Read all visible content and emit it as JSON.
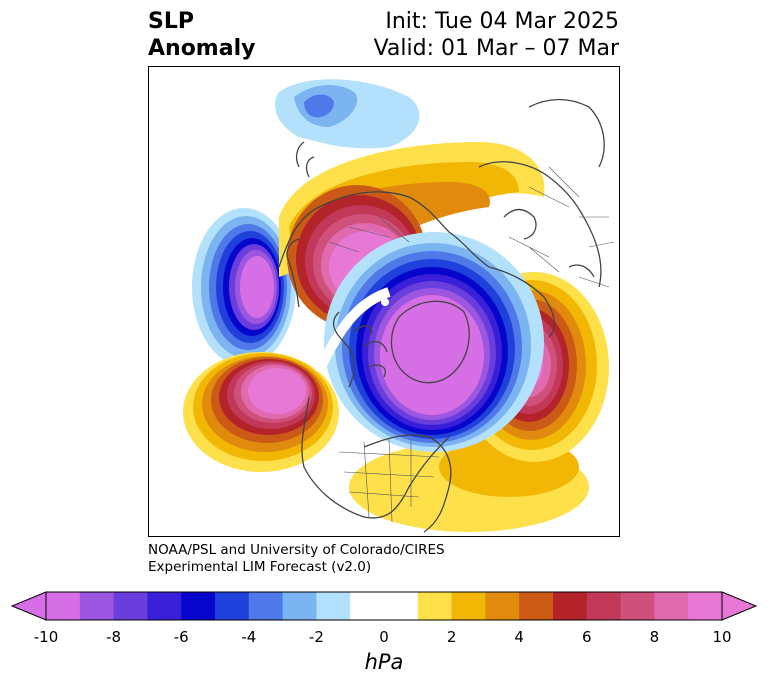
{
  "title": {
    "left_line1": "SLP",
    "left_line2": "Anomaly",
    "right_line1": "Init: Tue 04 Mar 2025",
    "right_line2": "Valid: 01 Mar – 07 Mar"
  },
  "credit": {
    "line1": "NOAA/PSL and University of Colorado/CIRES",
    "line2": "Experimental LIM Forecast (v2.0)"
  },
  "colorbar": {
    "unit": "hPa",
    "ticks": [
      "-10",
      "-8",
      "-6",
      "-4",
      "-2",
      "0",
      "2",
      "4",
      "6",
      "8",
      "10"
    ],
    "colors": [
      "#d66fe6",
      "#9d56e0",
      "#6a3ddd",
      "#3a1fd8",
      "#0505cc",
      "#2040dc",
      "#4f78e8",
      "#7cb4f2",
      "#b3e0fb",
      "#ffffff",
      "#ffffff",
      "#fde04a",
      "#f2b705",
      "#e08b0e",
      "#cc5a17",
      "#b2242a",
      "#c23858",
      "#d0507c",
      "#df6aad",
      "#e878d6"
    ],
    "extend_low_color": "#d66fe6",
    "extend_high_color": "#e878d6"
  },
  "map": {
    "projection": "north polar stereographic",
    "anomalies": [
      {
        "feature": "low",
        "region": "Gulf of Alaska / NE Pacific",
        "min_hPa": -10
      },
      {
        "feature": "low",
        "region": "Arctic / Siberia",
        "min_hPa": -10
      },
      {
        "feature": "low",
        "region": "Greenland / Canadian Arctic",
        "min_hPa": -10
      },
      {
        "feature": "high",
        "region": "Scandinavia / Europe",
        "max_hPa": 10
      },
      {
        "feature": "high",
        "region": "North Atlantic (Azores)",
        "max_hPa": 10
      },
      {
        "feature": "high",
        "region": "Central Pacific",
        "max_hPa": 10
      },
      {
        "feature": "high",
        "region": "Southeast US / Western Atlantic",
        "max_hPa": 3
      },
      {
        "feature": "low",
        "region": "Northeast Asia / Okhotsk",
        "min_hPa": -3
      }
    ]
  }
}
